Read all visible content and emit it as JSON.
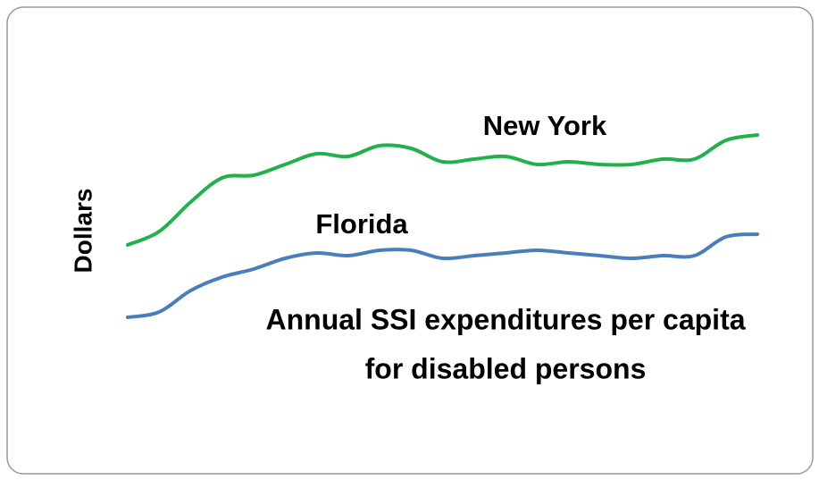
{
  "chart_data": {
    "type": "line",
    "title": [
      "Annual SSI expenditures per capita",
      "for disabled persons"
    ],
    "ylabel": "Dollars",
    "categories": [
      null,
      null,
      null,
      null,
      null,
      null,
      null,
      null,
      null,
      null,
      null,
      null,
      null,
      null,
      null,
      null,
      null,
      null,
      null,
      null,
      null
    ],
    "series": [
      {
        "name": "New York",
        "color": "#21b04b",
        "values": [
          42,
          47,
          58,
          67,
          68,
          72,
          76,
          75,
          79,
          78,
          73,
          74,
          75,
          72,
          73,
          72,
          72,
          74,
          74,
          81,
          83
        ]
      },
      {
        "name": "Florida",
        "color": "#4a7ebb",
        "values": [
          15,
          17,
          25,
          30,
          33,
          37,
          39,
          38,
          40,
          40,
          37,
          38,
          39,
          40,
          39,
          38,
          37,
          38,
          38,
          45,
          46
        ]
      }
    ],
    "ylim": [
      0,
      100
    ]
  }
}
